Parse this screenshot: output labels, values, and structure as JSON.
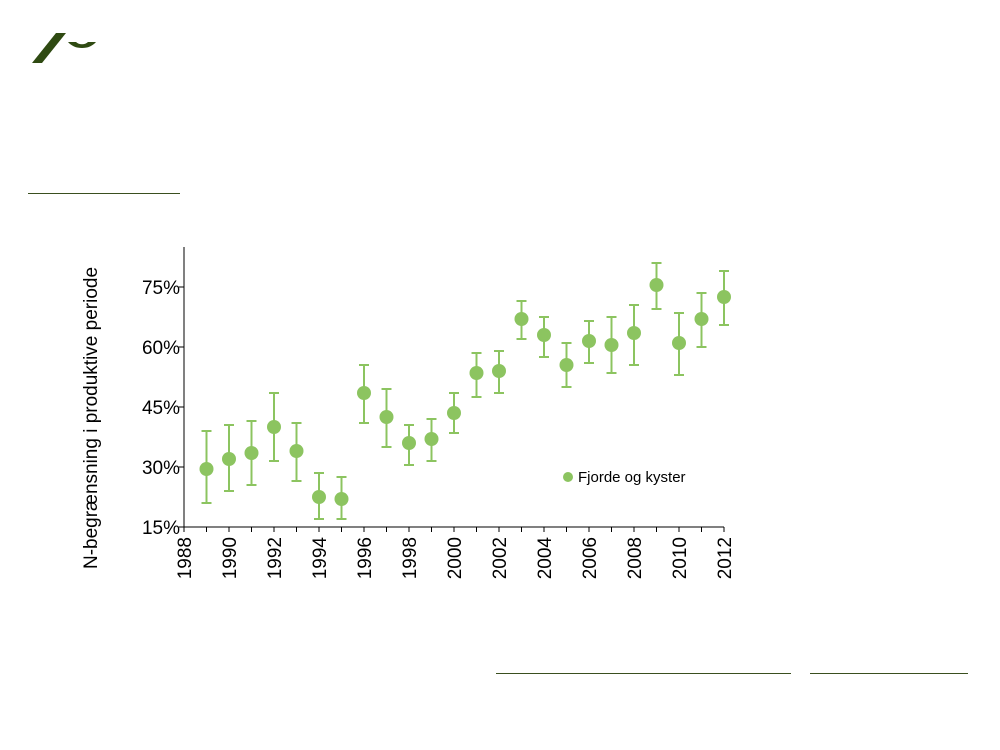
{
  "colors": {
    "brand": "#2f4a12",
    "series": "#8cc460",
    "rule": "#3a4f1f"
  },
  "logo": {
    "icon": "university-logo-icon"
  },
  "chart_data": {
    "type": "scatter",
    "title": "",
    "xlabel": "",
    "ylabel": "N-begrænsning i produktive periode",
    "xlim": [
      1988,
      2012
    ],
    "ylim": [
      15,
      85
    ],
    "x_ticks": [
      1988,
      1990,
      1992,
      1994,
      1996,
      1998,
      2000,
      2002,
      2004,
      2006,
      2008,
      2010,
      2012
    ],
    "y_ticks": [
      15,
      30,
      45,
      60,
      75
    ],
    "y_tick_labels": [
      "15%",
      "30%",
      "45%",
      "60%",
      "75%"
    ],
    "legend": {
      "position": "bottom-right",
      "entries": [
        "Fjorde og kyster"
      ]
    },
    "series": [
      {
        "name": "Fjorde og kyster",
        "points": [
          {
            "x": 1989,
            "y": 29.5,
            "lo": 21.0,
            "hi": 39.0
          },
          {
            "x": 1990,
            "y": 32.0,
            "lo": 24.0,
            "hi": 40.5
          },
          {
            "x": 1991,
            "y": 33.5,
            "lo": 25.5,
            "hi": 41.5
          },
          {
            "x": 1992,
            "y": 40.0,
            "lo": 31.5,
            "hi": 48.5
          },
          {
            "x": 1993,
            "y": 34.0,
            "lo": 26.5,
            "hi": 41.0
          },
          {
            "x": 1994,
            "y": 22.5,
            "lo": 17.0,
            "hi": 28.5
          },
          {
            "x": 1995,
            "y": 22.0,
            "lo": 17.0,
            "hi": 27.5
          },
          {
            "x": 1996,
            "y": 48.5,
            "lo": 41.0,
            "hi": 55.5
          },
          {
            "x": 1997,
            "y": 42.5,
            "lo": 35.0,
            "hi": 49.5
          },
          {
            "x": 1998,
            "y": 36.0,
            "lo": 30.5,
            "hi": 40.5
          },
          {
            "x": 1999,
            "y": 37.0,
            "lo": 31.5,
            "hi": 42.0
          },
          {
            "x": 2000,
            "y": 43.5,
            "lo": 38.5,
            "hi": 48.5
          },
          {
            "x": 2001,
            "y": 53.5,
            "lo": 47.5,
            "hi": 58.5
          },
          {
            "x": 2002,
            "y": 54.0,
            "lo": 48.5,
            "hi": 59.0
          },
          {
            "x": 2003,
            "y": 67.0,
            "lo": 62.0,
            "hi": 71.5
          },
          {
            "x": 2004,
            "y": 63.0,
            "lo": 57.5,
            "hi": 67.5
          },
          {
            "x": 2005,
            "y": 55.5,
            "lo": 50.0,
            "hi": 61.0
          },
          {
            "x": 2006,
            "y": 61.5,
            "lo": 56.0,
            "hi": 66.5
          },
          {
            "x": 2007,
            "y": 60.5,
            "lo": 53.5,
            "hi": 67.5
          },
          {
            "x": 2008,
            "y": 63.5,
            "lo": 55.5,
            "hi": 70.5
          },
          {
            "x": 2009,
            "y": 75.5,
            "lo": 69.5,
            "hi": 81.0
          },
          {
            "x": 2010,
            "y": 61.0,
            "lo": 53.0,
            "hi": 68.5
          },
          {
            "x": 2011,
            "y": 67.0,
            "lo": 60.0,
            "hi": 73.5
          },
          {
            "x": 2012,
            "y": 72.5,
            "lo": 65.5,
            "hi": 79.0
          }
        ]
      }
    ]
  }
}
